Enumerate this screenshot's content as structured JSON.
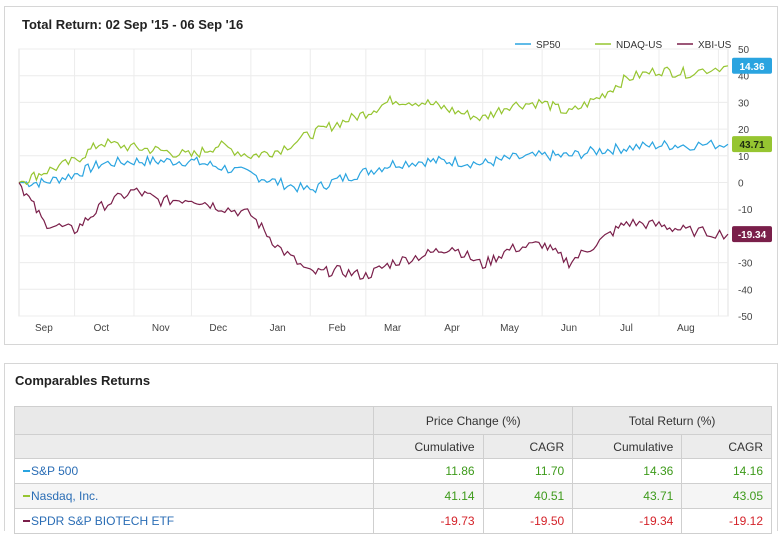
{
  "chart": {
    "title": "Total Return: 02 Sep '15 - 06 Sep '16",
    "legend": [
      {
        "name": "SP50",
        "color": "#2aa4e0"
      },
      {
        "name": "NDAQ-US",
        "color": "#96c531"
      },
      {
        "name": "XBI-US",
        "color": "#7a1f4a"
      }
    ],
    "end_labels": [
      {
        "text": "43.71",
        "color": "#96c531"
      },
      {
        "text": "14.36",
        "color": "#2aa4e0"
      },
      {
        "text": "-19.34",
        "color": "#7a1f4a"
      }
    ]
  },
  "chart_data": {
    "type": "line",
    "title": "Total Return: 02 Sep '15 - 06 Sep '16",
    "x_tick_labels": [
      "Sep",
      "Oct",
      "Nov",
      "Dec",
      "Jan",
      "Feb",
      "Mar",
      "Apr",
      "May",
      "Jun",
      "Jul",
      "Aug"
    ],
    "y_tick_labels": [
      "50",
      "40",
      "30",
      "20",
      "10",
      "0",
      "-10",
      "-20",
      "-30",
      "-40",
      "-50"
    ],
    "ylim": [
      -50,
      50
    ],
    "y_axis_side": "right",
    "grid": true,
    "legend_position": "top-right",
    "x": [
      "2015-09-02",
      "2015-09-15",
      "2015-10-01",
      "2015-10-15",
      "2015-11-01",
      "2015-11-15",
      "2015-12-01",
      "2015-12-15",
      "2016-01-01",
      "2016-01-15",
      "2016-02-01",
      "2016-02-15",
      "2016-03-01",
      "2016-03-15",
      "2016-04-01",
      "2016-04-15",
      "2016-05-01",
      "2016-05-15",
      "2016-06-01",
      "2016-06-15",
      "2016-07-01",
      "2016-07-15",
      "2016-08-01",
      "2016-08-15",
      "2016-09-06"
    ],
    "series": [
      {
        "name": "SP50",
        "color": "#2aa4e0",
        "values": [
          0,
          0,
          3,
          7,
          8,
          8,
          8,
          6,
          3,
          0,
          -3,
          1,
          4,
          7,
          8,
          8,
          7,
          9,
          10,
          10,
          12,
          13,
          14,
          14,
          14.36
        ]
      },
      {
        "name": "NDAQ-US",
        "color": "#96c531",
        "values": [
          0,
          4,
          8,
          15,
          13,
          12,
          10,
          14,
          10,
          12,
          18,
          22,
          26,
          31,
          30,
          27,
          24,
          29,
          30,
          26,
          32,
          39,
          42,
          41,
          43.71
        ]
      },
      {
        "name": "XBI-US",
        "color": "#7a1f4a",
        "values": [
          0,
          -15,
          -18,
          -9,
          -3,
          -7,
          -6,
          -9,
          -12,
          -24,
          -34,
          -33,
          -35,
          -30,
          -27,
          -24,
          -31,
          -25,
          -23,
          -30,
          -22,
          -15,
          -16,
          -18,
          -19.34
        ]
      }
    ]
  },
  "table": {
    "title": "Comparables Returns",
    "group_headers": [
      "",
      "Price Change (%)",
      "Total Return (%)"
    ],
    "sub_headers": [
      "",
      "Cumulative",
      "CAGR",
      "Cumulative",
      "CAGR"
    ],
    "rows": [
      {
        "name": "S&P 500",
        "color": "#2aa4e0",
        "price_cumulative": "11.86",
        "price_cagr": "11.70",
        "total_cumulative": "14.36",
        "total_cagr": "14.16",
        "sign": "pos"
      },
      {
        "name": "Nasdaq, Inc.",
        "color": "#96c531",
        "price_cumulative": "41.14",
        "price_cagr": "40.51",
        "total_cumulative": "43.71",
        "total_cagr": "43.05",
        "sign": "pos"
      },
      {
        "name": "SPDR S&P BIOTECH ETF",
        "color": "#7a1f4a",
        "price_cumulative": "-19.73",
        "price_cagr": "-19.50",
        "total_cumulative": "-19.34",
        "total_cagr": "-19.12",
        "sign": "neg"
      }
    ]
  }
}
